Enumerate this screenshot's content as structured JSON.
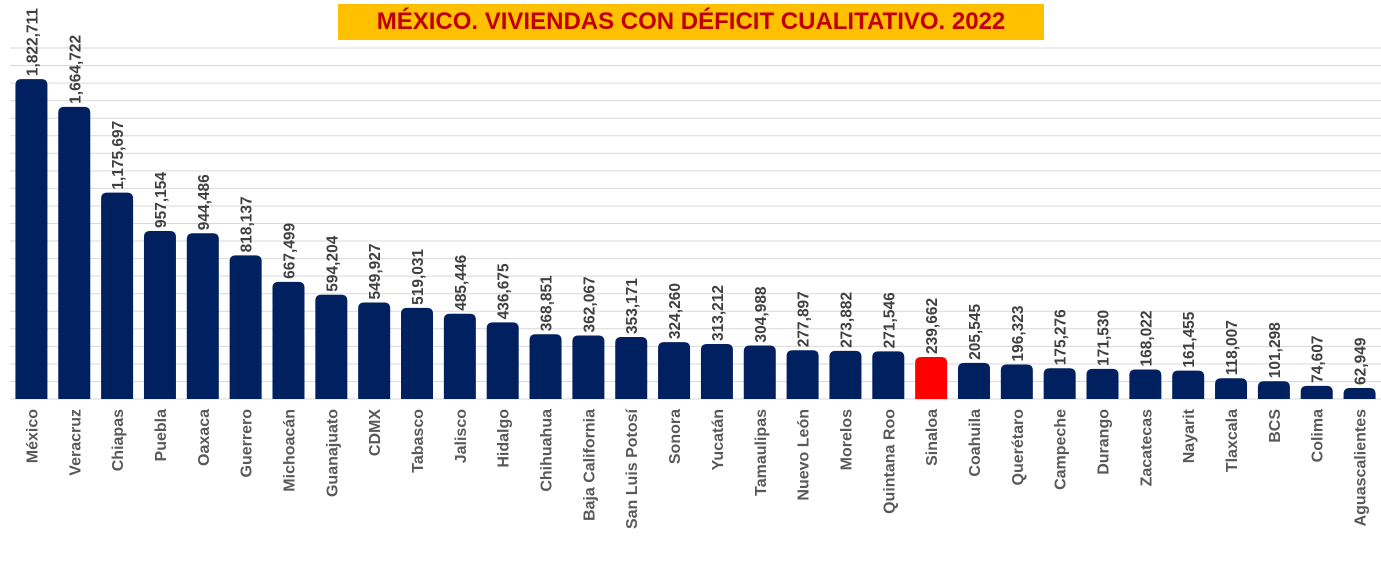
{
  "chart_data": {
    "type": "bar",
    "title": "MÉXICO. VIVIENDAS CON DÉFICIT CUALITATIVO. 2022",
    "categories": [
      "México",
      "Veracruz",
      "Chiapas",
      "Puebla",
      "Oaxaca",
      "Guerrero",
      "Michoacán",
      "Guanajuato",
      "CDMX",
      "Tabasco",
      "Jalisco",
      "Hidalgo",
      "Chihuahua",
      "Baja California",
      "San Luis Potosí",
      "Sonora",
      "Yucatán",
      "Tamaulipas",
      "Nuevo León",
      "Morelos",
      "Quintana Roo",
      "Sinaloa",
      "Coahuila",
      "Querétaro",
      "Campeche",
      "Durango",
      "Zacatecas",
      "Nayarit",
      "Tlaxcala",
      "BCS",
      "Colima",
      "Aguascalientes"
    ],
    "values": [
      1822711,
      1664722,
      1175697,
      957154,
      944486,
      818137,
      667499,
      594204,
      549927,
      519031,
      485446,
      436675,
      368851,
      362067,
      353171,
      324260,
      313212,
      304988,
      277897,
      273882,
      271546,
      239662,
      205545,
      196323,
      175276,
      171530,
      168022,
      161455,
      118007,
      101298,
      74607,
      62949
    ],
    "labels": [
      "1,822,711",
      "1,664,722",
      "1,175,697",
      "957,154",
      "944,486",
      "818,137",
      "667,499",
      "594,204",
      "549,927",
      "519,031",
      "485,446",
      "436,675",
      "368,851",
      "362,067",
      "353,171",
      "324,260",
      "313,212",
      "304,988",
      "277,897",
      "273,882",
      "271,546",
      "239,662",
      "205,545",
      "196,323",
      "175,276",
      "171,530",
      "168,022",
      "161,455",
      "118,007",
      "101,298",
      "74,607",
      "62,949"
    ],
    "highlight": "Sinaloa",
    "colors": {
      "bar": "#002060",
      "highlight": "#ff0000",
      "title_bg": "#ffc000",
      "title_text": "#c00000"
    },
    "ylim": [
      0,
      2000000
    ],
    "grid": true,
    "xlabel": "",
    "ylabel": ""
  }
}
